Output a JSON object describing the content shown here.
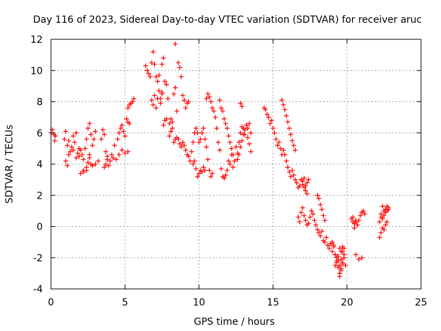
{
  "chart_data": {
    "type": "scatter",
    "title": "Day 116 of 2023, Sidereal Day-to-day VTEC variation (SDTVAR) for receiver aruc",
    "xlabel": "GPS time / hours",
    "ylabel": "SDTVAR / TECUs",
    "xlim": [
      0,
      25
    ],
    "ylim": [
      -4,
      12
    ],
    "xticks": [
      0,
      5,
      10,
      15,
      20,
      25
    ],
    "yticks": [
      -4,
      -2,
      0,
      2,
      4,
      6,
      8,
      10,
      12
    ],
    "xtick_labels": [
      "0",
      "5",
      "10",
      "15",
      "20",
      "25"
    ],
    "ytick_labels": [
      "-4",
      "-2",
      "0",
      "2",
      "4",
      "6",
      "8",
      "10",
      "12"
    ],
    "grid": true,
    "marker": "+",
    "color": "#ff0000",
    "series": [
      {
        "name": "SDTVAR",
        "x": [
          0.0,
          0.1,
          0.2,
          0.25,
          0.3,
          0.9,
          1.0,
          1.1,
          1.2,
          1.3,
          1.4,
          1.5,
          1.6,
          1.7,
          1.8,
          1.9,
          2.0,
          2.1,
          2.2,
          2.3,
          2.4,
          2.5,
          2.6,
          2.7,
          2.8,
          2.9,
          3.0,
          1.0,
          1.1,
          1.2,
          1.5,
          1.7,
          1.9,
          2.2,
          2.4,
          2.6,
          2.8,
          3.0,
          3.2,
          2.0,
          2.2,
          2.4,
          2.5,
          2.6,
          2.7,
          3.4,
          3.5,
          3.6,
          3.7,
          3.8,
          3.9,
          4.0,
          3.6,
          3.7,
          3.8,
          4.1,
          4.3,
          4.5,
          4.6,
          4.7,
          4.8,
          4.9,
          5.0,
          5.1,
          5.2,
          5.3,
          4.2,
          4.4,
          4.6,
          4.8,
          5.0,
          5.2,
          5.2,
          5.3,
          5.4,
          5.5,
          5.6,
          6.4,
          6.5,
          6.6,
          6.7,
          6.8,
          6.9,
          7.0,
          7.1,
          7.2,
          7.3,
          7.4,
          7.5,
          6.8,
          6.9,
          7.0,
          7.1,
          7.2,
          7.3,
          7.4,
          7.5,
          7.5,
          7.6,
          7.7,
          7.8,
          7.9,
          8.0,
          8.1,
          8.2,
          8.3,
          8.4,
          8.5,
          8.0,
          8.1,
          8.2,
          8.3,
          8.4,
          7.6,
          7.7,
          7.8,
          8.4,
          8.6,
          8.7,
          8.8,
          8.9,
          9.0,
          9.1,
          9.2,
          9.3,
          8.5,
          8.6,
          8.7,
          8.8,
          8.9,
          9.0,
          9.1,
          9.2,
          9.3,
          9.4,
          9.5,
          9.6,
          9.7,
          9.8,
          9.9,
          10.0,
          10.1,
          10.2,
          10.3,
          10.4,
          10.5,
          10.6,
          10.7,
          10.8,
          10.9,
          9.6,
          9.7,
          9.8,
          9.9,
          10.0,
          10.1,
          10.2,
          10.3,
          10.4,
          10.5,
          10.6,
          10.7,
          10.8,
          10.9,
          11.0,
          11.1,
          11.2,
          11.3,
          11.4,
          11.5,
          11.6,
          11.7,
          11.8,
          11.9,
          12.0,
          12.1,
          12.2,
          12.3,
          12.4,
          12.5,
          12.6,
          12.7,
          12.8,
          12.9,
          13.0,
          13.1,
          13.2,
          13.3,
          13.4,
          13.5,
          11.4,
          11.5,
          11.6,
          11.7,
          11.8,
          11.9,
          12.0,
          12.1,
          12.2,
          12.3,
          12.6,
          12.7,
          12.8,
          12.9,
          13.0,
          13.1,
          13.2,
          13.3,
          13.4,
          13.5,
          12.8,
          12.9,
          14.4,
          14.5,
          14.6,
          14.7,
          14.8,
          14.9,
          15.0,
          15.1,
          15.2,
          15.3,
          15.4,
          15.5,
          15.6,
          15.7,
          15.8,
          15.9,
          16.0,
          16.1,
          16.2,
          16.3,
          16.4,
          16.5,
          16.6,
          16.7,
          16.8,
          16.9,
          17.0,
          17.1,
          17.2,
          17.3,
          15.6,
          15.7,
          15.8,
          15.9,
          16.0,
          16.1,
          16.2,
          16.3,
          16.4,
          16.5,
          16.7,
          16.8,
          16.9,
          17.0,
          17.1,
          17.2,
          17.3,
          17.0,
          17.1,
          17.2,
          17.3,
          17.4,
          17.4,
          17.5,
          17.6,
          17.7,
          17.8,
          17.9,
          18.0,
          18.1,
          18.2,
          18.3,
          18.4,
          18.5,
          18.6,
          18.7,
          18.8,
          18.9,
          19.0,
          19.1,
          19.2,
          19.3,
          19.4,
          19.5,
          19.6,
          19.7,
          19.8,
          18.0,
          18.1,
          18.2,
          18.3,
          18.4,
          18.5,
          19.0,
          19.1,
          19.2,
          19.3,
          19.4,
          19.5,
          19.6,
          19.7,
          19.2,
          19.3,
          19.4,
          19.5,
          19.6,
          19.7,
          19.8,
          19.5,
          19.6,
          19.7,
          19.8,
          19.9,
          20.3,
          20.4,
          20.5,
          20.6,
          20.4,
          20.5,
          20.6,
          20.7,
          20.8,
          20.9,
          21.0,
          21.1,
          21.2,
          20.6,
          20.8,
          21.0,
          22.2,
          22.3,
          22.4,
          22.5,
          22.6,
          22.7,
          22.8,
          22.3,
          22.4,
          22.5,
          22.6,
          22.7,
          22.8,
          22.2,
          22.3,
          22.4,
          22.5,
          22.6,
          22.7
        ],
        "y": [
          6.0,
          6.2,
          5.9,
          5.5,
          5.8,
          5.6,
          6.1,
          5.2,
          4.6,
          4.8,
          5.1,
          4.9,
          5.4,
          4.4,
          4.7,
          4.5,
          4.9,
          4.6,
          4.3,
          5.0,
          5.6,
          6.3,
          6.6,
          5.9,
          5.2,
          5.6,
          6.1,
          4.2,
          3.9,
          5.5,
          5.8,
          6.0,
          5.0,
          3.5,
          3.6,
          4.6,
          3.9,
          4.0,
          4.2,
          3.4,
          3.6,
          3.8,
          4.1,
          4.4,
          4.0,
          5.6,
          6.2,
          5.9,
          4.8,
          4.3,
          3.9,
          4.2,
          3.8,
          4.0,
          4.5,
          4.6,
          5.2,
          5.6,
          6.0,
          6.3,
          6.5,
          6.1,
          5.8,
          6.9,
          6.7,
          6.6,
          4.4,
          4.3,
          4.6,
          4.9,
          4.7,
          4.8,
          7.6,
          7.8,
          7.9,
          8.0,
          8.2,
          10.3,
          10.0,
          9.8,
          9.6,
          10.5,
          11.2,
          10.4,
          9.6,
          9.3,
          9.7,
          8.2,
          8.5,
          8.1,
          7.8,
          8.4,
          7.6,
          8.2,
          8.7,
          7.9,
          8.6,
          10.4,
          10.8,
          9.3,
          9.1,
          8.2,
          6.6,
          6.9,
          6.7,
          8.5,
          8.9,
          7.4,
          5.8,
          6.1,
          6.3,
          5.4,
          5.6,
          6.5,
          6.8,
          6.9,
          11.7,
          10.5,
          10.2,
          9.6,
          8.4,
          8.1,
          7.6,
          7.9,
          8.0,
          5.7,
          5.6,
          5.3,
          5.1,
          5.4,
          5.2,
          4.9,
          4.6,
          4.5,
          4.2,
          4.8,
          5.4,
          6.0,
          6.3,
          6.0,
          5.4,
          5.6,
          6.0,
          6.3,
          5.6,
          5.1,
          4.3,
          3.6,
          3.2,
          3.4,
          4.0,
          4.2,
          3.7,
          3.2,
          3.4,
          3.6,
          3.5,
          3.8,
          3.6,
          8.2,
          8.5,
          8.3,
          8.0,
          7.6,
          7.4,
          7.0,
          6.3,
          5.4,
          4.9,
          3.7,
          3.2,
          3.1,
          3.3,
          3.6,
          4.2,
          4.0,
          4.6,
          3.8,
          4.2,
          5.1,
          4.7,
          5.4,
          6.0,
          6.4,
          6.3,
          5.9,
          6.5,
          5.7,
          5.3,
          4.8,
          8.1,
          7.6,
          7.4,
          6.9,
          6.6,
          6.3,
          5.8,
          5.4,
          5.0,
          4.6,
          4.3,
          4.6,
          5.1,
          5.5,
          5.9,
          6.2,
          6.5,
          6.3,
          6.6,
          6.0,
          7.9,
          7.7,
          7.6,
          7.5,
          7.2,
          7.0,
          6.6,
          6.8,
          6.3,
          6.0,
          5.6,
          5.2,
          5.4,
          5.0,
          4.6,
          4.9,
          4.6,
          4.2,
          3.8,
          3.5,
          3.2,
          3.6,
          3.3,
          3.0,
          2.8,
          2.5,
          2.6,
          3.0,
          2.7,
          2.5,
          2.3,
          2.1,
          8.1,
          7.8,
          7.5,
          7.1,
          6.7,
          6.3,
          5.9,
          5.5,
          5.2,
          4.9,
          0.6,
          0.3,
          0.9,
          1.2,
          0.7,
          0.4,
          0.1,
          2.9,
          3.1,
          2.6,
          2.8,
          3.0,
          0.2,
          0.6,
          1.0,
          0.8,
          0.4,
          0.1,
          -0.2,
          -0.4,
          -0.6,
          -0.3,
          -0.9,
          -1.0,
          -0.7,
          -1.2,
          -1.4,
          -1.1,
          -1.6,
          -1.3,
          -1.8,
          -2.0,
          -2.2,
          -2.5,
          -2.1,
          -1.6,
          -1.4,
          2.0,
          1.8,
          1.4,
          1.1,
          0.7,
          0.4,
          -1.0,
          -1.2,
          -1.8,
          -2.3,
          -2.6,
          -3.2,
          -2.8,
          -2.4,
          -2.5,
          -2.2,
          -1.9,
          -1.4,
          -1.6,
          -1.3,
          -1.8,
          -3.0,
          -2.7,
          -2.3,
          -2.0,
          -2.5,
          0.5,
          0.3,
          -0.1,
          0.4,
          0.6,
          0.2,
          0.3,
          0.1,
          0.4,
          0.7,
          0.9,
          1.0,
          0.8,
          -1.8,
          -2.1,
          -2.0,
          0.3,
          0.8,
          1.3,
          1.0,
          1.1,
          1.3,
          1.1,
          0.6,
          0.5,
          0.7,
          0.9,
          1.0,
          1.2,
          -0.7,
          -0.4,
          -0.1,
          -0.2,
          0.1,
          0.3
        ]
      }
    ]
  }
}
